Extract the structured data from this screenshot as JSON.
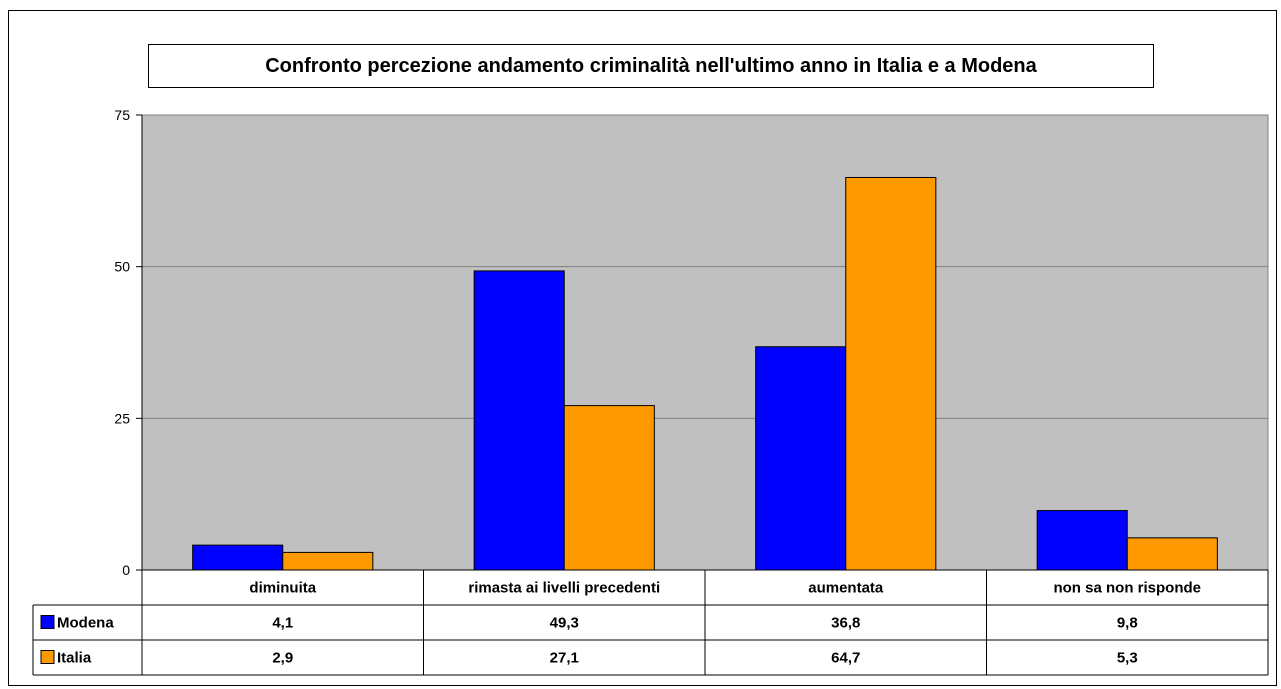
{
  "chart_data": {
    "type": "bar",
    "title": "Confronto percezione andamento criminalità nell'ultimo anno in Italia e a Modena",
    "categories": [
      "diminuita",
      "rimasta ai livelli precedenti",
      "aumentata",
      "non sa non risponde"
    ],
    "series": [
      {
        "name": "Modena",
        "values": [
          4.1,
          49.3,
          36.8,
          9.8
        ],
        "labels": [
          "4,1",
          "49,3",
          "36,8",
          "9,8"
        ],
        "color": "#0000ff"
      },
      {
        "name": "Italia",
        "values": [
          2.9,
          27.1,
          64.7,
          5.3
        ],
        "labels": [
          "2,9",
          "27,1",
          "64,7",
          "5,3"
        ],
        "color": "#ff9900"
      }
    ],
    "ylim": [
      0,
      75
    ],
    "yticks": [
      0,
      25,
      50,
      75
    ],
    "grid": true,
    "plot_background": "#c0c0c0",
    "legend": "data-table",
    "xlabel": "",
    "ylabel": ""
  }
}
